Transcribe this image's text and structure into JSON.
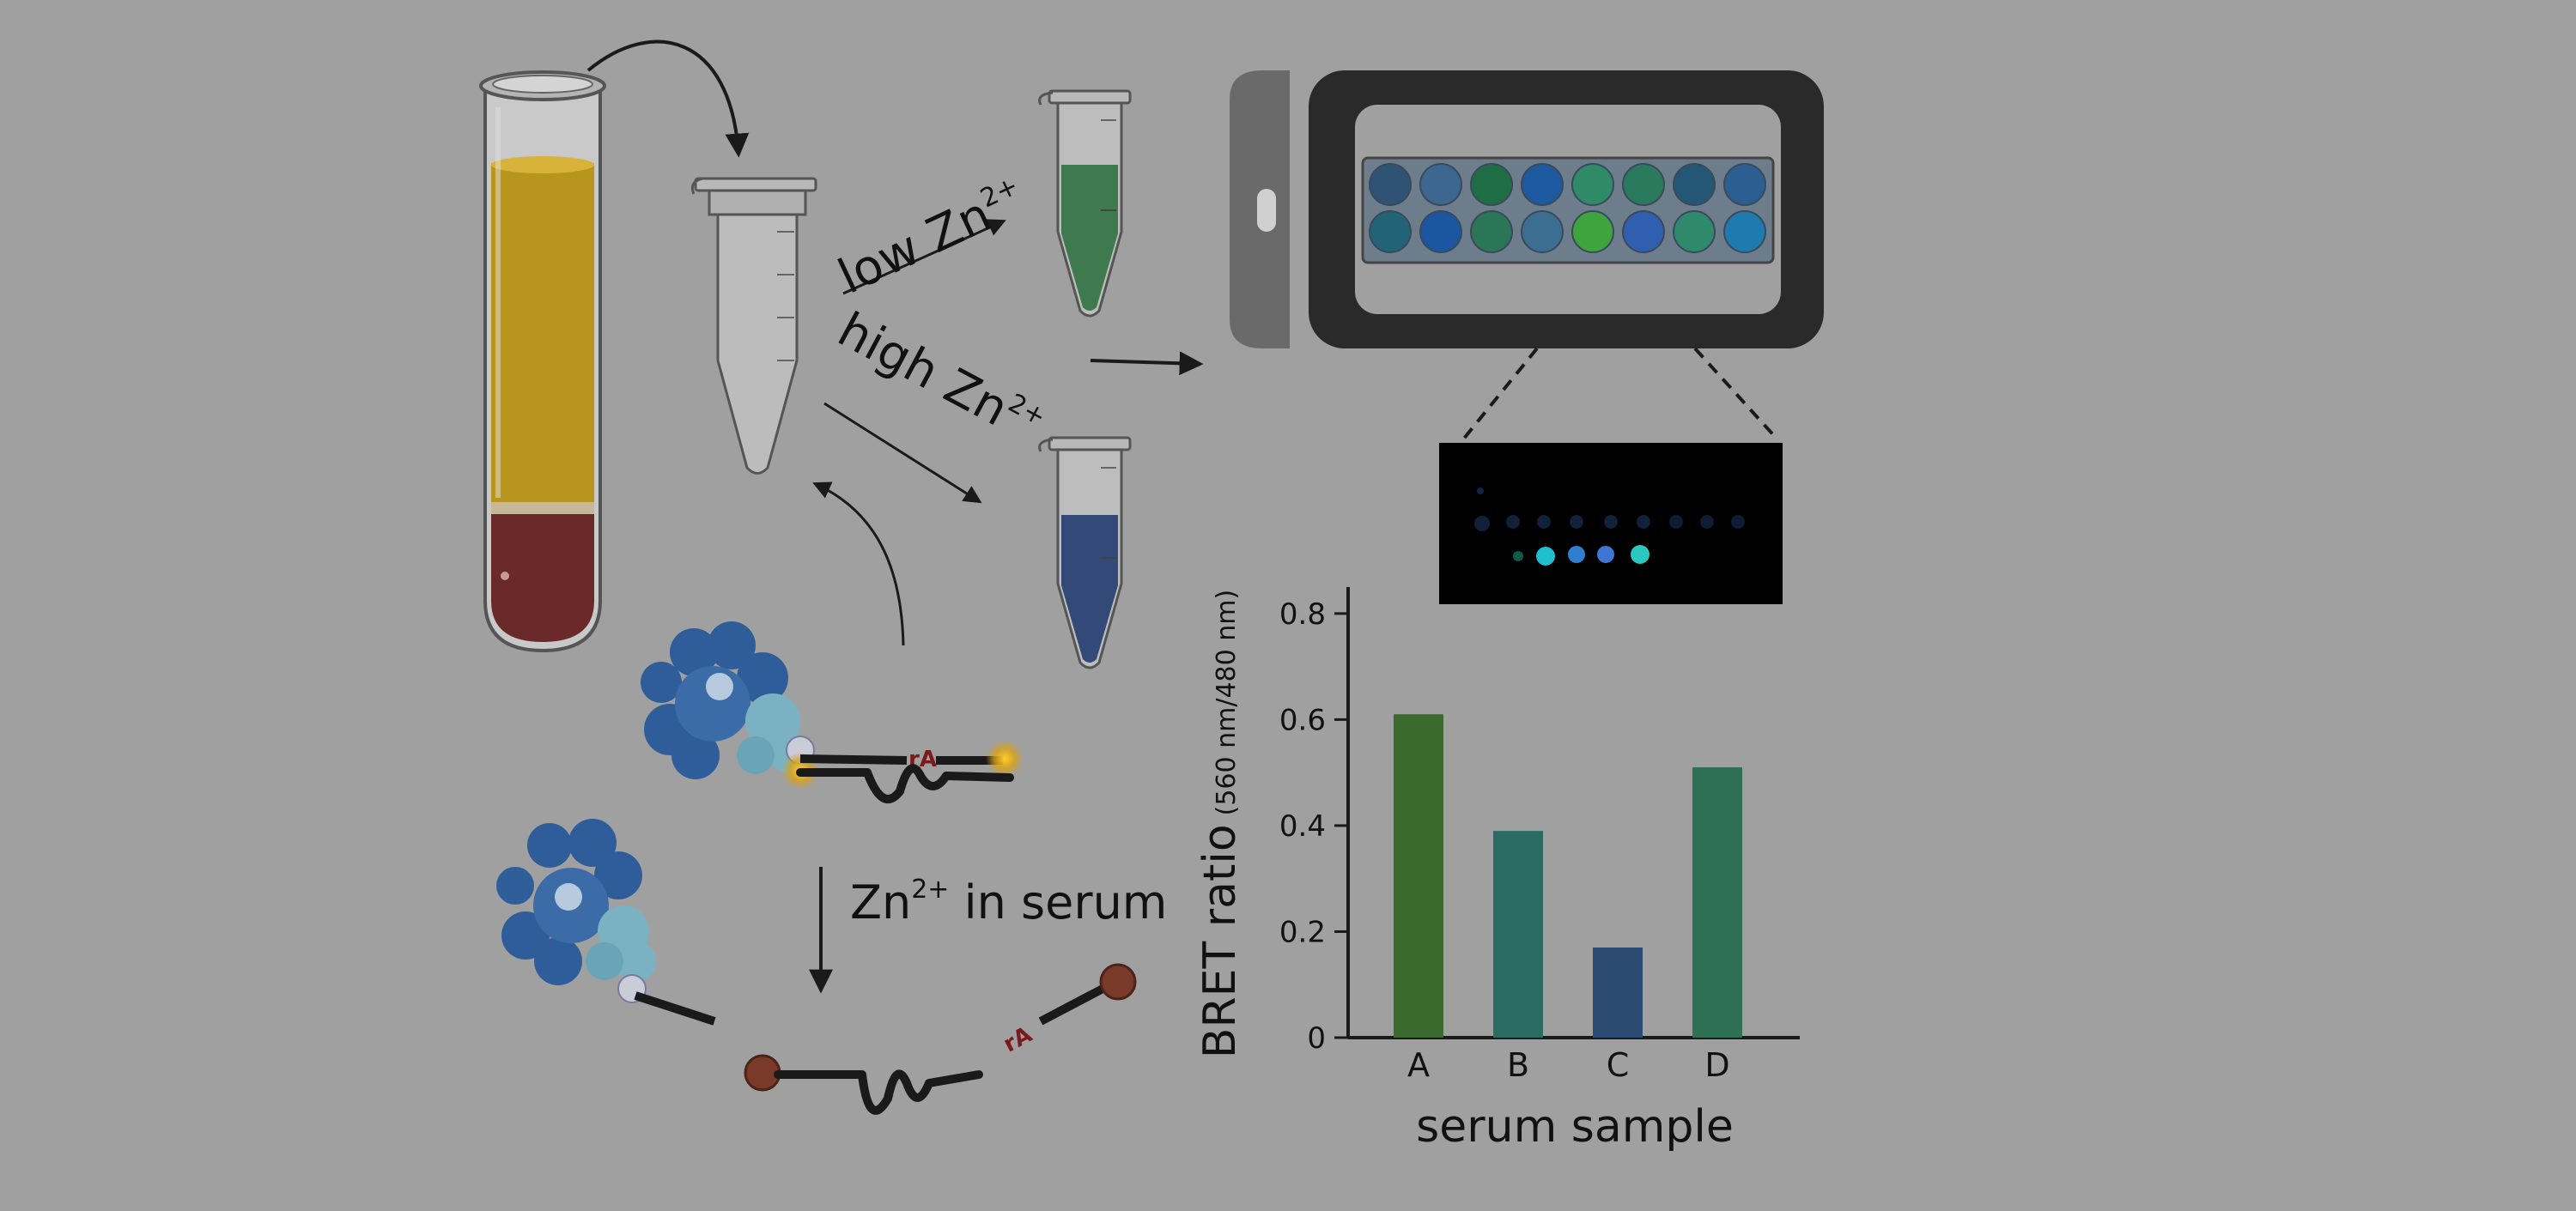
{
  "labels": {
    "low_zn": "low Zn",
    "high_zn": "high Zn",
    "zn_symbol": "Zn",
    "charge_sup": "2+",
    "in_serum": " in serum",
    "ra": "rA"
  },
  "colors": {
    "background": "#a0a0a0",
    "serum": "#b8951e",
    "blood": "#6a2a2a",
    "green_sample": "#3e7a4e",
    "blue_sample": "#334a78",
    "protein_dark": "#2f5d9a",
    "protein_light": "#7ab2c4",
    "device": "#2a2a2a"
  },
  "plate": {
    "row1": [
      "#2f5375",
      "#3d6690",
      "#1f6d45",
      "#1e5aa0",
      "#2f8a68",
      "#2a7b5e",
      "#245775",
      "#2b5f92"
    ],
    "row2": [
      "#226378",
      "#1c56a0",
      "#2a7656",
      "#3c6e92",
      "#3ea43e",
      "#2f5fae",
      "#2e8a6a",
      "#1e7bb0"
    ]
  },
  "chart_data": {
    "type": "bar",
    "categories": [
      "A",
      "B",
      "C",
      "D"
    ],
    "values": [
      0.61,
      0.39,
      0.17,
      0.51
    ],
    "colors": [
      "#3a6a2e",
      "#2a6b62",
      "#2c4b72",
      "#2e7055"
    ],
    "ylim": [
      0,
      0.85
    ],
    "yticks": [
      0,
      0.2,
      0.4,
      0.6,
      0.8
    ],
    "ylabel": "BRET ratio",
    "ylabel_sub": "(560 nm/480 nm)",
    "xlabel": "serum sample",
    "grid": false
  }
}
